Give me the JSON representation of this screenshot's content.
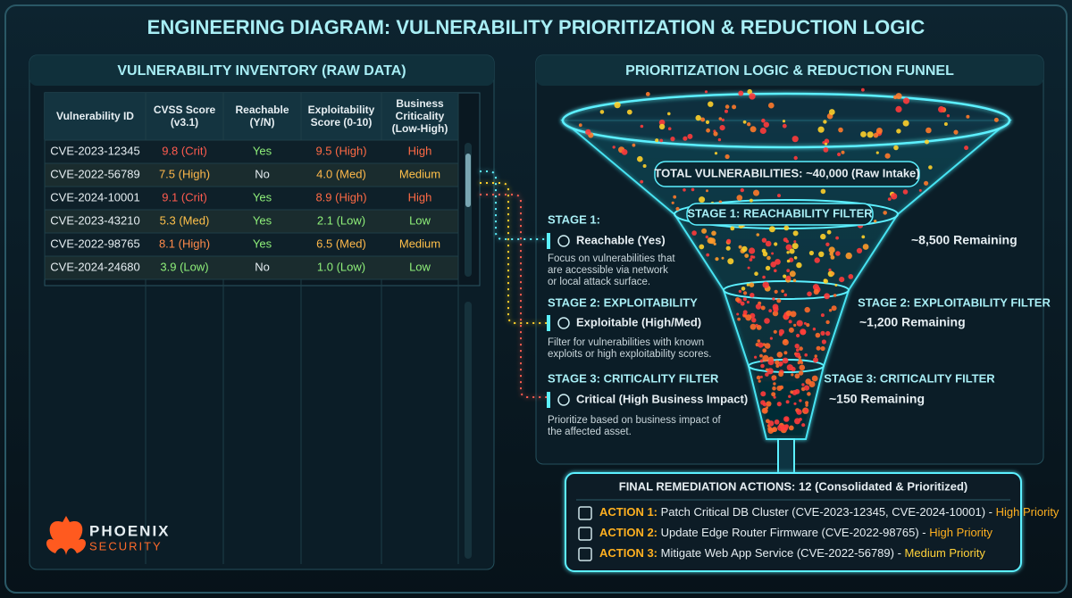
{
  "title": "ENGINEERING DIAGRAM: VULNERABILITY PRIORITIZATION & REDUCTION LOGIC",
  "inventory": {
    "title": "VULNERABILITY INVENTORY (RAW DATA)",
    "columns": [
      [
        "Vulnerability ID"
      ],
      [
        "CVSS Score",
        "(v3.1)"
      ],
      [
        "Reachable",
        "(Y/N)"
      ],
      [
        "Exploitability",
        "Score (0-10)"
      ],
      [
        "Business",
        "Criticality",
        "(Low-High)"
      ]
    ],
    "rows": [
      {
        "cells": [
          "CVE-2023-12345",
          "9.8 (Crit)",
          "Yes",
          "9.5 (High)",
          "High"
        ],
        "colors": [
          "#e6eef2",
          "#ff5b4f",
          "#8ff07a",
          "#ff6a45",
          "#ff6a45"
        ]
      },
      {
        "cells": [
          "CVE-2022-56789",
          "7.5 (High)",
          "No",
          "4.0 (Med)",
          "Medium"
        ],
        "colors": [
          "#e6eef2",
          "#ffb84a",
          "#e6eef2",
          "#ffb84a",
          "#ffc04a"
        ]
      },
      {
        "cells": [
          "CVE-2024-10001",
          "9.1 (Crit)",
          "Yes",
          "8.9 (High)",
          "High"
        ],
        "colors": [
          "#e6eef2",
          "#ff5b4f",
          "#8ff07a",
          "#ff6a45",
          "#ff6a45"
        ]
      },
      {
        "cells": [
          "CVE-2023-43210",
          "5.3 (Med)",
          "Yes",
          "2.1 (Low)",
          "Low"
        ],
        "colors": [
          "#e6eef2",
          "#ffc04a",
          "#8ff07a",
          "#8ff07a",
          "#8ff07a"
        ]
      },
      {
        "cells": [
          "CVE-2022-98765",
          "8.1 (High)",
          "Yes",
          "6.5 (Med)",
          "Medium"
        ],
        "colors": [
          "#e6eef2",
          "#ff8a4a",
          "#8ff07a",
          "#ffb84a",
          "#ffc04a"
        ]
      },
      {
        "cells": [
          "CVE-2024-24680",
          "3.9 (Low)",
          "No",
          "1.0 (Low)",
          "Low"
        ],
        "colors": [
          "#e6eef2",
          "#8ff07a",
          "#e6eef2",
          "#8ff07a",
          "#8ff07a"
        ]
      }
    ]
  },
  "funnel": {
    "title": "PRIORITIZATION LOGIC & REDUCTION FUNNEL",
    "total": "TOTAL VULNERABILITIES: ~40,000 (Raw Intake)",
    "stages": [
      {
        "heading": "STAGE 1:",
        "check": "Reachable (Yes)",
        "desc": [
          "Focus on vulnerabilities that",
          "are accessible via network",
          "or local attack surface."
        ],
        "filter": "STAGE 1: REACHABILITY FILTER",
        "remaining": "~8,500 Remaining"
      },
      {
        "heading": "STAGE 2: EXPLOITABILITY",
        "check": "Exploitable (High/Med)",
        "desc": [
          "Filter for vulnerabilities with known",
          "exploits or high exploitability scores."
        ],
        "filter": "STAGE 2: EXPLOITABILITY FILTER",
        "remaining": "~1,200 Remaining"
      },
      {
        "heading": "STAGE 3: CRITICALITY FILTER",
        "check": "Critical (High Business Impact)",
        "desc": [
          "Prioritize based on business impact of",
          "the affected asset."
        ],
        "filter": "STAGE 3: CRITICALITY FILTER",
        "remaining": "~150 Remaining"
      }
    ]
  },
  "remediation": {
    "title": "FINAL REMEDIATION ACTIONS: 12 (Consolidated & Prioritized)",
    "actions": [
      {
        "label": "ACTION 1:",
        "text": "Patch Critical DB Cluster (CVE-2023-12345, CVE-2024-10001) -",
        "priority": "High Priority",
        "priority_color": "#ffb020"
      },
      {
        "label": "ACTION 2:",
        "text": "Update Edge Router Firmware (CVE-2022-98765) -",
        "priority": "High Priority",
        "priority_color": "#ffb020"
      },
      {
        "label": "ACTION 3:",
        "text": "Mitigate Web App Service (CVE-2022-56789) -",
        "priority": "Medium Priority",
        "priority_color": "#ffd23a"
      }
    ]
  },
  "logo": {
    "name": "PHOENIX",
    "sub": "SECURITY"
  }
}
